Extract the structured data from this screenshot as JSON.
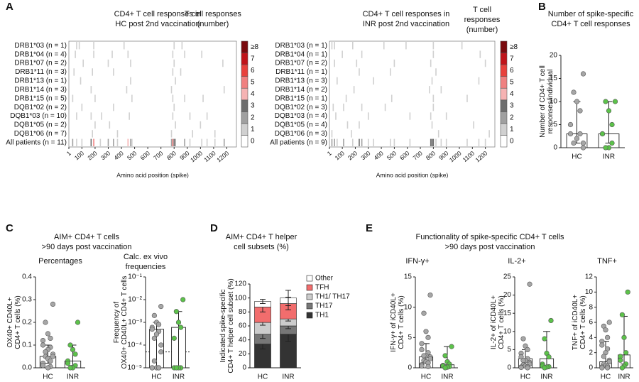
{
  "chart_data": [
    {
      "type": "heat",
      "panel": "A",
      "title": [
        "CD4+ T cell responses in",
        "HC post 2nd vaccination"
      ],
      "colorbar_title": [
        "T cell responses",
        "(number)"
      ],
      "xlabel": "Amino acid position (spike)",
      "xlim": [
        1,
        1273
      ],
      "xticks": [
        1,
        100,
        200,
        300,
        400,
        500,
        600,
        700,
        800,
        900,
        1000,
        1100,
        1200
      ],
      "colorbar_ticks": [
        0,
        1,
        2,
        3,
        4,
        5,
        6,
        7,
        {
          "value": 8,
          "label": "≥8"
        }
      ],
      "colorbar_colors": [
        "#ffffff",
        "#d0d0d0",
        "#a0a0a0",
        "#6e6e6e",
        "#f6b3b3",
        "#f08080",
        "#e8413c",
        "#c0141a",
        "#7a0a0e"
      ],
      "series": [
        {
          "name": "DRB1*03 (n = 1)",
          "x": [
            60,
            80,
            190,
            420,
            800,
            860
          ],
          "values": [
            1,
            1,
            1,
            1,
            1,
            1
          ]
        },
        {
          "name": "DRB1*04 (n = 4)",
          "x": [
            50,
            190,
            330,
            450,
            790,
            880,
            1010
          ],
          "values": [
            1,
            1,
            1,
            1,
            1,
            1,
            1
          ]
        },
        {
          "name": "DRB1*07 (n = 2)",
          "x": [
            110,
            300,
            470,
            800,
            1170
          ],
          "values": [
            1,
            1,
            1,
            1,
            1
          ]
        },
        {
          "name": "DRB1*11 (n = 3)",
          "x": [
            40,
            180,
            340,
            790,
            850
          ],
          "values": [
            1,
            1,
            1,
            1,
            1
          ]
        },
        {
          "name": "DRB1*13 (n = 1)",
          "x": [
            90,
            470,
            810
          ],
          "values": [
            1,
            1,
            1
          ]
        },
        {
          "name": "DRB1*14 (n = 3)",
          "x": [
            170,
            440,
            780,
            1180
          ],
          "values": [
            1,
            1,
            1,
            1
          ]
        },
        {
          "name": "DRB1*15 (n = 5)",
          "x": [
            30,
            200,
            480,
            790,
            880,
            1020
          ],
          "values": [
            1,
            1,
            1,
            1,
            1,
            1
          ]
        },
        {
          "name": "DQB1*02 (n = 2)",
          "x": [
            100,
            340,
            800
          ],
          "values": [
            1,
            1,
            1
          ]
        },
        {
          "name": "DQB1*03 (n = 10)",
          "x": [
            60,
            170,
            250,
            460,
            790,
            920,
            1050
          ],
          "values": [
            1,
            1,
            1,
            1,
            1,
            1,
            1
          ]
        },
        {
          "name": "DQB1*05 (n = 2)",
          "x": [
            200,
            310,
            810,
            1000
          ],
          "values": [
            1,
            1,
            1,
            1
          ]
        },
        {
          "name": "DQB1*06 (n = 7)",
          "x": [
            180,
            370,
            780,
            940,
            1110
          ],
          "values": [
            1,
            1,
            1,
            1,
            1
          ]
        },
        {
          "name": "All patients (n = 11)",
          "x": [
            30,
            60,
            100,
            170,
            190,
            240,
            300,
            340,
            370,
            450,
            470,
            480,
            780,
            790,
            800,
            810,
            880,
            920,
            1010,
            1050,
            1110,
            1180
          ],
          "values": [
            2,
            1,
            1,
            3,
            5,
            1,
            2,
            2,
            1,
            4,
            2,
            1,
            2,
            5,
            3,
            2,
            2,
            1,
            1,
            1,
            1,
            2
          ]
        }
      ]
    },
    {
      "type": "heat",
      "title": [
        "CD4+ T cell responses in",
        "INR post 2nd vaccination"
      ],
      "colorbar_title": [
        "T cell",
        "responses",
        "(number)"
      ],
      "xlabel": "Amino acid position (spike)",
      "xlim": [
        1,
        1273
      ],
      "xticks": [
        1,
        100,
        200,
        300,
        400,
        500,
        600,
        700,
        800,
        900,
        1000,
        1100,
        1200
      ],
      "colorbar_ticks": [
        0,
        1,
        2,
        3,
        4,
        5,
        6,
        7,
        {
          "value": 8,
          "label": "≥8"
        }
      ],
      "colorbar_colors": [
        "#ffffff",
        "#d0d0d0",
        "#a0a0a0",
        "#6e6e6e",
        "#f6b3b3",
        "#f08080",
        "#e8413c",
        "#c0141a",
        "#7a0a0e"
      ],
      "series": [
        {
          "name": "DRB1*03 (n = 1)",
          "x": [
            20,
            40,
            180,
            420,
            590,
            800,
            1020
          ],
          "values": [
            1,
            1,
            1,
            1,
            1,
            1,
            1
          ]
        },
        {
          "name": "DRB1*04 (n = 1)",
          "x": [
            100,
            250,
            800,
            1160
          ],
          "values": [
            1,
            1,
            1,
            1
          ]
        },
        {
          "name": "DRB1*07 (n = 2)",
          "x": [
            40,
            210,
            500,
            780,
            1200
          ],
          "values": [
            1,
            1,
            1,
            1,
            1
          ]
        },
        {
          "name": "DRB1*11 (n = 1)",
          "x": [
            230,
            470,
            820
          ],
          "values": [
            1,
            1,
            1
          ]
        },
        {
          "name": "DRB1*13 (n = 3)",
          "x": [
            60,
            340,
            790,
            1150
          ],
          "values": [
            1,
            1,
            1,
            1
          ]
        },
        {
          "name": "DRB1*14 (n = 2)",
          "x": [
            190,
            770,
            860
          ],
          "values": [
            1,
            1,
            1
          ]
        },
        {
          "name": "DRB1*15 (n = 1)",
          "x": [
            130,
            480,
            800,
            1060
          ],
          "values": [
            1,
            1,
            1,
            1
          ]
        },
        {
          "name": "DQB1*02 (n = 3)",
          "x": [
            30,
            110,
            250,
            430,
            800
          ],
          "values": [
            1,
            1,
            1,
            1,
            1
          ]
        },
        {
          "name": "DQB1*03 (n = 4)",
          "x": [
            50,
            300,
            620,
            780,
            900
          ],
          "values": [
            1,
            1,
            1,
            1,
            1
          ]
        },
        {
          "name": "DQB1*05 (n = 4)",
          "x": [
            140,
            230,
            790,
            1110
          ],
          "values": [
            1,
            1,
            1,
            1
          ]
        },
        {
          "name": "DQB1*06 (n = 3)",
          "x": [
            20,
            170,
            840,
            1230
          ],
          "values": [
            1,
            1,
            1,
            1
          ]
        },
        {
          "name": "All patients (n = 9)",
          "x": [
            20,
            40,
            60,
            110,
            180,
            230,
            250,
            300,
            340,
            470,
            500,
            620,
            780,
            790,
            800,
            820,
            860,
            900,
            1060,
            1150,
            1200
          ],
          "values": [
            2,
            2,
            1,
            2,
            1,
            3,
            2,
            1,
            1,
            1,
            1,
            1,
            3,
            3,
            3,
            1,
            1,
            1,
            1,
            1,
            1
          ]
        }
      ]
    },
    {
      "type": "dots",
      "panel": "B",
      "title": [
        "Number of spike-specific",
        "CD4+ T cell responses"
      ],
      "ylabel": [
        "Number of CD4+ T cell",
        "responses/individual"
      ],
      "categories": [
        "HC",
        "INR"
      ],
      "colors": [
        "#a6a6a6",
        "#5cc24a"
      ],
      "ylim": [
        0,
        20
      ],
      "yticks": [
        0,
        5,
        10,
        15,
        20
      ],
      "values": [
        [
          16,
          12,
          10,
          8,
          5,
          3,
          3,
          2,
          1,
          1,
          0
        ],
        [
          10,
          10,
          8,
          5,
          3,
          3,
          1,
          0,
          0
        ]
      ],
      "medians": [
        3,
        3
      ],
      "ranges": [
        [
          1,
          10
        ],
        [
          1,
          10
        ]
      ]
    },
    {
      "type": "dots",
      "panel": "C",
      "group_title": [
        "AIM+ CD4+ T cells",
        ">90 days post vaccination"
      ],
      "title": [
        "Percentages"
      ],
      "ylabel": [
        "OX40+ CD40L+",
        "CD4+ T cells (%)"
      ],
      "categories": [
        "HC",
        "INR"
      ],
      "colors": [
        "#a6a6a6",
        "#5cc24a"
      ],
      "ylim": [
        0,
        0.4
      ],
      "yticks": [
        {
          "value": 0,
          "label": "0.0"
        },
        0.1,
        0.2,
        0.3,
        0.4
      ],
      "values": [
        [
          0.28,
          0.2,
          0.15,
          0.13,
          0.12,
          0.1,
          0.09,
          0.08,
          0.07,
          0.06,
          0.05,
          0.05,
          0.04,
          0.03,
          0.02,
          0.01,
          0.005,
          0
        ],
        [
          0.2,
          0.1,
          0.08,
          0.06,
          0.03,
          0.02,
          0.01,
          0,
          0
        ]
      ],
      "medians": [
        0.05,
        0.03
      ],
      "ranges": [
        [
          0.02,
          0.1
        ],
        [
          0.01,
          0.1
        ]
      ]
    },
    {
      "type": "dots",
      "title": [
        "Calc. ex vivo",
        "frequencies"
      ],
      "ylabel": [
        "Frequency of",
        "OX40+ CD40L+ CD4+ T cells"
      ],
      "log_scale": true,
      "threshold": 5e-05,
      "categories": [
        "HC",
        "INR"
      ],
      "colors": [
        "#a6a6a6",
        "#5cc24a"
      ],
      "ylim": [
        1e-05,
        0.1
      ],
      "yticks": [
        {
          "value": 1e-05,
          "label": "10⁻⁵"
        },
        {
          "value": 0.0001,
          "label": "10⁻⁴"
        },
        {
          "value": 0.001,
          "label": "10⁻³"
        },
        {
          "value": 0.01,
          "label": "10⁻²"
        },
        {
          "value": 0.1,
          "label": "10⁻¹"
        }
      ],
      "values": [
        [
          0.005,
          0.002,
          0.001,
          0.0008,
          0.0006,
          0.0005,
          0.0004,
          0.0003,
          0.0002,
          0.0001,
          5e-05,
          2e-05,
          1e-05,
          1e-05,
          1e-05,
          1e-05,
          1e-05
        ],
        [
          0.01,
          0.003,
          0.001,
          0.0006,
          0.0002,
          1e-05,
          1e-05,
          1e-05,
          1e-05
        ]
      ],
      "medians": [
        0.0005,
        0.0006
      ],
      "ranges": [
        [
          1e-05,
          0.001
        ],
        [
          1e-05,
          0.003
        ]
      ]
    },
    {
      "type": "stacked",
      "panel": "D",
      "title": [
        "AIM+ CD4+ T helper",
        "cell subsets (%)"
      ],
      "ylabel": [
        "Indicated spike-specific",
        "CD4+ T helper cell subset (%)"
      ],
      "categories": [
        "HC",
        "INR"
      ],
      "ylim": [
        0,
        120
      ],
      "yticks": [
        0,
        20,
        40,
        60,
        80,
        100,
        120
      ],
      "series": [
        {
          "name": "TH1",
          "color": "#333333",
          "values": [
            34,
            48
          ],
          "errors": [
            7,
            10
          ]
        },
        {
          "name": "TH17",
          "color": "#777777",
          "values": [
            14,
            12
          ],
          "errors": [
            6,
            4
          ]
        },
        {
          "name": "TH1/ TH17",
          "color": "#cccccc",
          "values": [
            17,
            10
          ],
          "errors": [
            4,
            3
          ]
        },
        {
          "name": "TFH",
          "color": "#f26d6d",
          "values": [
            22,
            22
          ],
          "errors": [
            7,
            9
          ]
        },
        {
          "name": "Other",
          "color": "#ffffff",
          "values": [
            8,
            8
          ],
          "errors": [
            3,
            11
          ]
        }
      ]
    },
    {
      "type": "dots",
      "panel": "E",
      "group_title": [
        "Functionality of spike-specific CD4+ T cells",
        ">90 days post vaccination"
      ],
      "title": [
        "IFN-γ+"
      ],
      "ylabel": [
        "IFN-γ+ of iCD40L+",
        "CD4+ T cells (%)"
      ],
      "categories": [
        "HC",
        "INR"
      ],
      "colors": [
        "#a6a6a6",
        "#5cc24a"
      ],
      "ylim": [
        0,
        15
      ],
      "yticks": [
        0,
        5,
        10,
        15
      ],
      "values": [
        [
          12,
          9,
          6,
          5,
          4,
          3,
          2.5,
          2,
          2,
          1.8,
          1.5,
          1.2,
          1,
          0.8,
          0.5,
          0.3,
          0.2
        ],
        [
          3.5,
          2,
          1,
          0.6,
          0.4,
          0.3,
          0.2,
          0.1,
          0
        ]
      ],
      "medians": [
        1.8,
        0.5
      ],
      "ranges": [
        [
          0.8,
          4
        ],
        [
          0.2,
          3.5
        ]
      ]
    },
    {
      "type": "dots",
      "title": [
        "IL-2+"
      ],
      "ylabel": [
        "IL-2+ of iCD40L+",
        "CD4+ T cells (%)"
      ],
      "categories": [
        "HC",
        "INR"
      ],
      "colors": [
        "#a6a6a6",
        "#5cc24a"
      ],
      "ylim": [
        0,
        25
      ],
      "yticks": [
        0,
        5,
        10,
        15,
        20,
        25
      ],
      "values": [
        [
          23,
          8,
          6,
          5,
          4,
          3,
          2.5,
          2,
          2,
          1.5,
          1,
          0.8,
          0.5,
          0.3,
          0.2,
          0.1,
          0
        ],
        [
          13,
          8,
          4,
          3,
          1,
          0.5,
          0.3,
          0.2,
          0
        ]
      ],
      "medians": [
        2.5,
        2.5
      ],
      "ranges": [
        [
          0.5,
          5
        ],
        [
          0,
          10
        ]
      ]
    },
    {
      "type": "dots",
      "title": [
        "TNF+"
      ],
      "ylabel": [
        "TNF+ of iCD40L+",
        "CD4+ T cells (%)"
      ],
      "categories": [
        "HC",
        "INR"
      ],
      "colors": [
        "#a6a6a6",
        "#5cc24a"
      ],
      "ylim": [
        0,
        12
      ],
      "yticks": [
        0,
        2,
        4,
        6,
        8,
        10,
        12
      ],
      "values": [
        [
          6,
          5.5,
          5,
          4,
          3.5,
          3,
          2.5,
          2,
          1.5,
          1,
          0.8,
          0.5,
          0.3,
          0.2,
          0.1,
          0,
          0
        ],
        [
          10,
          7,
          4,
          2,
          1.5,
          1,
          0.5,
          0.2,
          0
        ]
      ],
      "medians": [
        0.8,
        1.7
      ],
      "ranges": [
        [
          0.2,
          3.5
        ],
        [
          0.5,
          6.8
        ]
      ]
    }
  ]
}
